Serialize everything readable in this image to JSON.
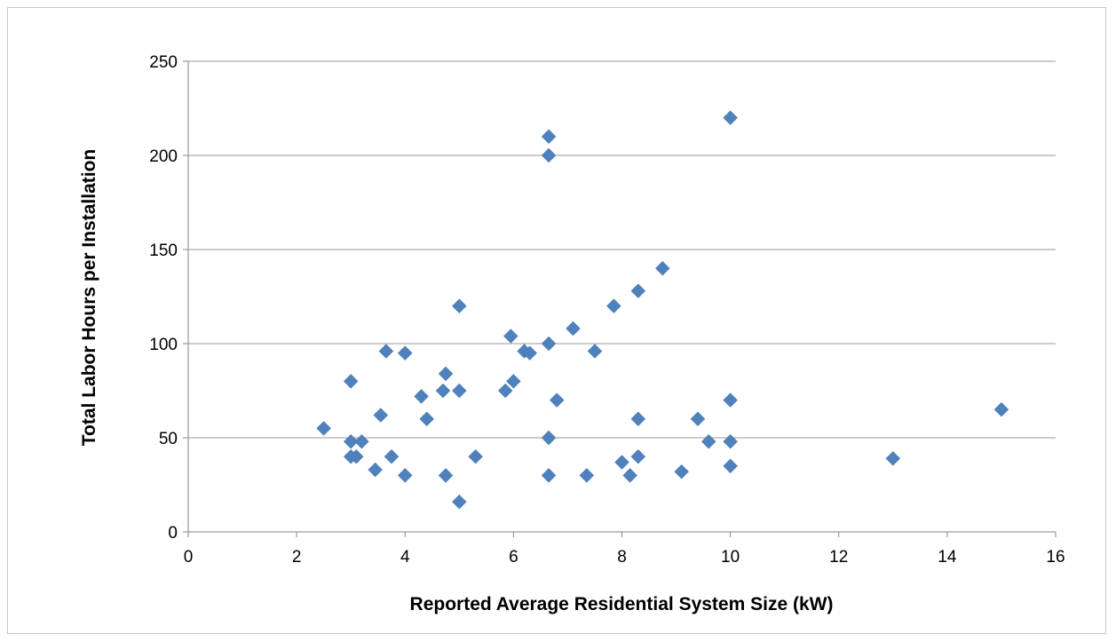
{
  "chart_data": {
    "type": "scatter",
    "title": "",
    "xlabel": "Reported Average Residential System Size (kW)",
    "ylabel": "Total Labor Hours per Installation",
    "xlim": [
      0,
      16
    ],
    "ylim": [
      0,
      250
    ],
    "x_ticks": [
      0,
      2,
      4,
      6,
      8,
      10,
      12,
      14,
      16
    ],
    "y_ticks": [
      0,
      50,
      100,
      150,
      200,
      250
    ],
    "grid": "horizontal",
    "legend": "none",
    "marker": "diamond",
    "color": "#4f81bd",
    "series": [
      {
        "points": [
          [
            2.5,
            55
          ],
          [
            3.0,
            80
          ],
          [
            3.0,
            48
          ],
          [
            3.0,
            40
          ],
          [
            3.1,
            40
          ],
          [
            3.2,
            48
          ],
          [
            3.45,
            33
          ],
          [
            3.55,
            62
          ],
          [
            3.65,
            96
          ],
          [
            3.75,
            40
          ],
          [
            4.0,
            95
          ],
          [
            4.0,
            30
          ],
          [
            4.3,
            72
          ],
          [
            4.4,
            60
          ],
          [
            4.7,
            75
          ],
          [
            4.75,
            84
          ],
          [
            4.75,
            30
          ],
          [
            5.0,
            120
          ],
          [
            5.0,
            75
          ],
          [
            5.0,
            16
          ],
          [
            5.3,
            40
          ],
          [
            5.85,
            75
          ],
          [
            5.95,
            104
          ],
          [
            6.0,
            80
          ],
          [
            6.2,
            96
          ],
          [
            6.3,
            95
          ],
          [
            6.65,
            210
          ],
          [
            6.65,
            200
          ],
          [
            6.65,
            100
          ],
          [
            6.65,
            50
          ],
          [
            6.65,
            30
          ],
          [
            6.8,
            70
          ],
          [
            7.1,
            108
          ],
          [
            7.35,
            30
          ],
          [
            7.5,
            96
          ],
          [
            7.85,
            120
          ],
          [
            8.0,
            37
          ],
          [
            8.15,
            30
          ],
          [
            8.3,
            128
          ],
          [
            8.3,
            60
          ],
          [
            8.3,
            40
          ],
          [
            8.75,
            140
          ],
          [
            9.1,
            32
          ],
          [
            9.4,
            60
          ],
          [
            9.6,
            48
          ],
          [
            10.0,
            220
          ],
          [
            10.0,
            70
          ],
          [
            10.0,
            48
          ],
          [
            10.0,
            35
          ],
          [
            13.0,
            39
          ],
          [
            15.0,
            65
          ]
        ]
      }
    ]
  }
}
